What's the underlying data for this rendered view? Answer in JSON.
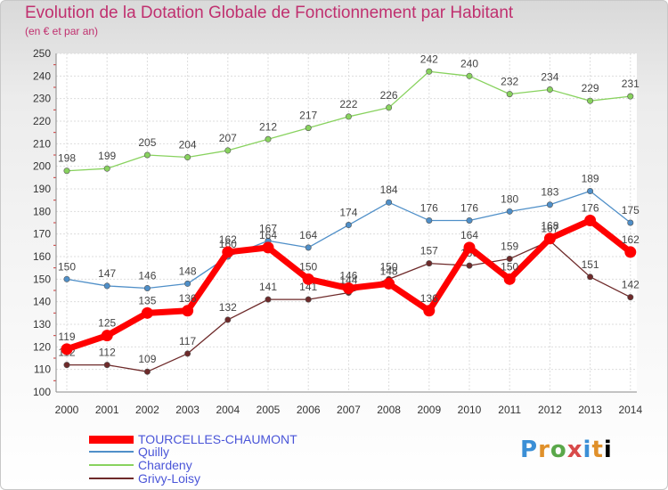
{
  "chart_data": {
    "type": "line",
    "title": "Evolution de la Dotation Globale de Fonctionnement par Habitant",
    "subtitle": "(en € et par an)",
    "x": [
      "2000",
      "2001",
      "2002",
      "2003",
      "2004",
      "2005",
      "2006",
      "2007",
      "2008",
      "2009",
      "2010",
      "2011",
      "2012",
      "2013",
      "2014"
    ],
    "ylim": [
      100,
      250
    ],
    "yticks": [
      "100",
      "110",
      "120",
      "130",
      "140",
      "150",
      "160",
      "170",
      "180",
      "190",
      "200",
      "210",
      "220",
      "230",
      "240",
      "250"
    ],
    "series": [
      {
        "name": "Chardeny",
        "color": "#88d25e",
        "values": [
          198,
          199,
          205,
          204,
          207,
          212,
          217,
          222,
          226,
          242,
          240,
          232,
          234,
          229,
          231
        ]
      },
      {
        "name": "Quilly",
        "color": "#4f8fc8",
        "values": [
          150,
          147,
          146,
          148,
          160,
          167,
          164,
          174,
          184,
          176,
          176,
          180,
          183,
          189,
          175
        ]
      },
      {
        "name": "Grivy-Loisy",
        "color": "#6e2a2a",
        "values": [
          112,
          112,
          109,
          117,
          132,
          141,
          141,
          144,
          150,
          157,
          156,
          159,
          167,
          151,
          142
        ]
      },
      {
        "name": "TOURCELLES-CHAUMONT",
        "color": "#ff0000",
        "values": [
          119,
          125,
          135,
          136,
          162,
          164,
          150,
          146,
          148,
          136,
          164,
          150,
          168,
          176,
          162
        ]
      }
    ],
    "legend": [
      "TOURCELLES-CHAUMONT",
      "Quilly",
      "Chardeny",
      "Grivy-Loisy"
    ]
  },
  "logo": {
    "letters": [
      "P",
      "r",
      "o",
      "x",
      "i",
      "t",
      "i"
    ]
  }
}
